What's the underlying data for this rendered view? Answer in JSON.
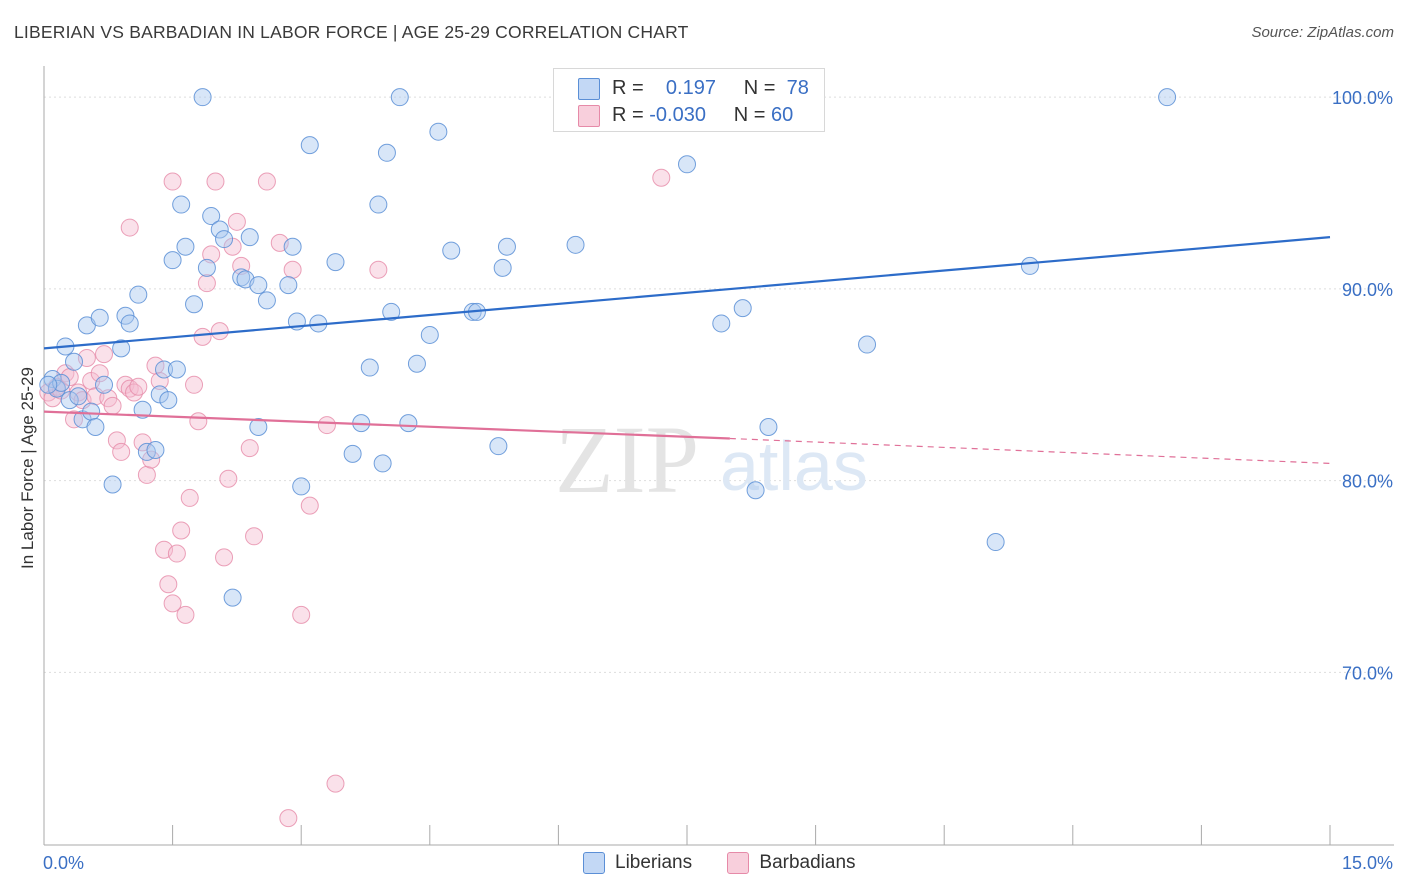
{
  "title": "LIBERIAN VS BARBADIAN IN LABOR FORCE | AGE 25-29 CORRELATION CHART",
  "source": "Source: ZipAtlas.com",
  "watermark": {
    "zip": "ZIP",
    "atlas": "atlas"
  },
  "legend": {
    "rows": [
      {
        "r_label": "R =",
        "r_value": "0.197",
        "n_label": "N =",
        "n_value": "78"
      },
      {
        "r_label": "R =",
        "r_value": "-0.030",
        "n_label": "N =",
        "n_value": "60"
      }
    ]
  },
  "bottom_legend": {
    "liberians": "Liberians",
    "barbadians": "Barbadians"
  },
  "colors": {
    "liberians_fill": "#a9c8f0",
    "liberians_stroke": "#5b8fd6",
    "liberians_line": "#2d6cc9",
    "barbadians_fill": "#f5bcd0",
    "barbadians_stroke": "#e68aa8",
    "barbadians_line": "#e07098",
    "tick_label": "#3a6fc4",
    "grid": "#dddddd"
  },
  "chart_data": {
    "type": "scatter",
    "title": "LIBERIAN VS BARBADIAN IN LABOR FORCE | AGE 25-29 CORRELATION CHART",
    "ylabel": "In Labor Force | Age 25-29",
    "xlim": [
      0,
      15
    ],
    "ylim": [
      61,
      101
    ],
    "x_tick_labels": [
      "0.0%",
      "15.0%"
    ],
    "y_ticks": [
      70,
      80,
      90,
      100
    ],
    "y_tick_labels": [
      "70.0%",
      "80.0%",
      "90.0%",
      "100.0%"
    ],
    "grid": true,
    "legend_position": "top-center",
    "series": [
      {
        "name": "Liberians",
        "r": 0.197,
        "n": 78,
        "trend": {
          "x": [
            0,
            15
          ],
          "y": [
            86.9,
            92.7
          ]
        },
        "points": [
          [
            0.1,
            85.3
          ],
          [
            0.15,
            84.8
          ],
          [
            0.2,
            85.1
          ],
          [
            0.25,
            87.0
          ],
          [
            0.3,
            84.2
          ],
          [
            0.35,
            86.2
          ],
          [
            0.4,
            84.4
          ],
          [
            0.45,
            83.2
          ],
          [
            0.5,
            88.1
          ],
          [
            0.55,
            83.6
          ],
          [
            0.6,
            82.8
          ],
          [
            0.65,
            88.5
          ],
          [
            0.7,
            85.0
          ],
          [
            0.8,
            79.8
          ],
          [
            0.9,
            86.9
          ],
          [
            0.95,
            88.6
          ],
          [
            1.0,
            88.2
          ],
          [
            1.1,
            89.7
          ],
          [
            1.15,
            83.7
          ],
          [
            1.2,
            81.5
          ],
          [
            1.3,
            81.6
          ],
          [
            1.35,
            84.5
          ],
          [
            1.4,
            85.8
          ],
          [
            1.45,
            84.2
          ],
          [
            1.5,
            91.5
          ],
          [
            1.55,
            85.8
          ],
          [
            1.6,
            94.4
          ],
          [
            1.65,
            92.2
          ],
          [
            1.75,
            89.2
          ],
          [
            1.85,
            100.0
          ],
          [
            1.9,
            91.1
          ],
          [
            1.95,
            93.8
          ],
          [
            2.05,
            93.1
          ],
          [
            2.1,
            92.6
          ],
          [
            2.2,
            73.9
          ],
          [
            2.3,
            90.6
          ],
          [
            2.35,
            90.5
          ],
          [
            2.4,
            92.7
          ],
          [
            2.5,
            90.2
          ],
          [
            2.5,
            82.8
          ],
          [
            2.6,
            89.4
          ],
          [
            2.85,
            90.2
          ],
          [
            2.9,
            92.2
          ],
          [
            2.95,
            88.3
          ],
          [
            3.0,
            79.7
          ],
          [
            3.1,
            97.5
          ],
          [
            3.2,
            88.2
          ],
          [
            3.4,
            91.4
          ],
          [
            3.6,
            81.4
          ],
          [
            3.7,
            83.0
          ],
          [
            3.8,
            85.9
          ],
          [
            3.9,
            94.4
          ],
          [
            3.95,
            80.9
          ],
          [
            4.0,
            97.1
          ],
          [
            4.05,
            88.8
          ],
          [
            4.15,
            100.0
          ],
          [
            4.25,
            83.0
          ],
          [
            4.35,
            86.1
          ],
          [
            4.5,
            87.6
          ],
          [
            4.6,
            98.2
          ],
          [
            4.75,
            92.0
          ],
          [
            5.0,
            88.8
          ],
          [
            5.05,
            88.8
          ],
          [
            5.3,
            81.8
          ],
          [
            5.35,
            91.1
          ],
          [
            5.4,
            92.2
          ],
          [
            6.2,
            92.3
          ],
          [
            7.0,
            100.0
          ],
          [
            7.5,
            96.5
          ],
          [
            7.9,
            88.2
          ],
          [
            8.15,
            89.0
          ],
          [
            8.3,
            79.5
          ],
          [
            8.45,
            82.8
          ],
          [
            9.6,
            87.1
          ],
          [
            11.1,
            76.8
          ],
          [
            11.5,
            91.2
          ],
          [
            13.1,
            100.0
          ],
          [
            0.05,
            85.0
          ]
        ]
      },
      {
        "name": "Barbadians",
        "r": -0.03,
        "n": 60,
        "trend": {
          "x": [
            0,
            8.0
          ],
          "y": [
            83.6,
            82.2
          ]
        },
        "trend_dashed": {
          "x": [
            8.0,
            15
          ],
          "y": [
            82.2,
            80.9
          ]
        },
        "points": [
          [
            0.05,
            84.6
          ],
          [
            0.1,
            84.3
          ],
          [
            0.15,
            84.9
          ],
          [
            0.2,
            84.7
          ],
          [
            0.25,
            85.6
          ],
          [
            0.3,
            85.4
          ],
          [
            0.35,
            83.2
          ],
          [
            0.4,
            84.6
          ],
          [
            0.45,
            84.2
          ],
          [
            0.5,
            86.4
          ],
          [
            0.55,
            85.2
          ],
          [
            0.6,
            84.4
          ],
          [
            0.65,
            85.6
          ],
          [
            0.7,
            86.6
          ],
          [
            0.75,
            84.3
          ],
          [
            0.8,
            83.9
          ],
          [
            0.85,
            82.1
          ],
          [
            0.9,
            81.5
          ],
          [
            0.95,
            85.0
          ],
          [
            1.0,
            84.8
          ],
          [
            1.05,
            84.6
          ],
          [
            1.1,
            84.9
          ],
          [
            1.15,
            82.0
          ],
          [
            1.2,
            80.3
          ],
          [
            1.25,
            81.1
          ],
          [
            1.3,
            86.0
          ],
          [
            1.35,
            85.2
          ],
          [
            1.4,
            76.4
          ],
          [
            1.45,
            74.6
          ],
          [
            1.5,
            73.6
          ],
          [
            1.55,
            76.2
          ],
          [
            1.6,
            77.4
          ],
          [
            1.65,
            73.0
          ],
          [
            1.7,
            79.1
          ],
          [
            1.75,
            85.0
          ],
          [
            1.8,
            83.1
          ],
          [
            1.85,
            87.5
          ],
          [
            1.9,
            90.3
          ],
          [
            1.95,
            91.8
          ],
          [
            2.0,
            95.6
          ],
          [
            2.05,
            87.8
          ],
          [
            2.1,
            76.0
          ],
          [
            2.15,
            80.1
          ],
          [
            2.2,
            92.2
          ],
          [
            2.25,
            93.5
          ],
          [
            2.3,
            91.2
          ],
          [
            2.4,
            81.7
          ],
          [
            2.45,
            77.1
          ],
          [
            2.6,
            95.6
          ],
          [
            2.75,
            92.4
          ],
          [
            2.85,
            62.4
          ],
          [
            2.9,
            91.0
          ],
          [
            3.0,
            73.0
          ],
          [
            3.1,
            78.7
          ],
          [
            3.3,
            82.9
          ],
          [
            3.4,
            64.2
          ],
          [
            3.9,
            91.0
          ],
          [
            7.2,
            95.8
          ],
          [
            1.0,
            93.2
          ],
          [
            1.5,
            95.6
          ]
        ]
      }
    ]
  }
}
